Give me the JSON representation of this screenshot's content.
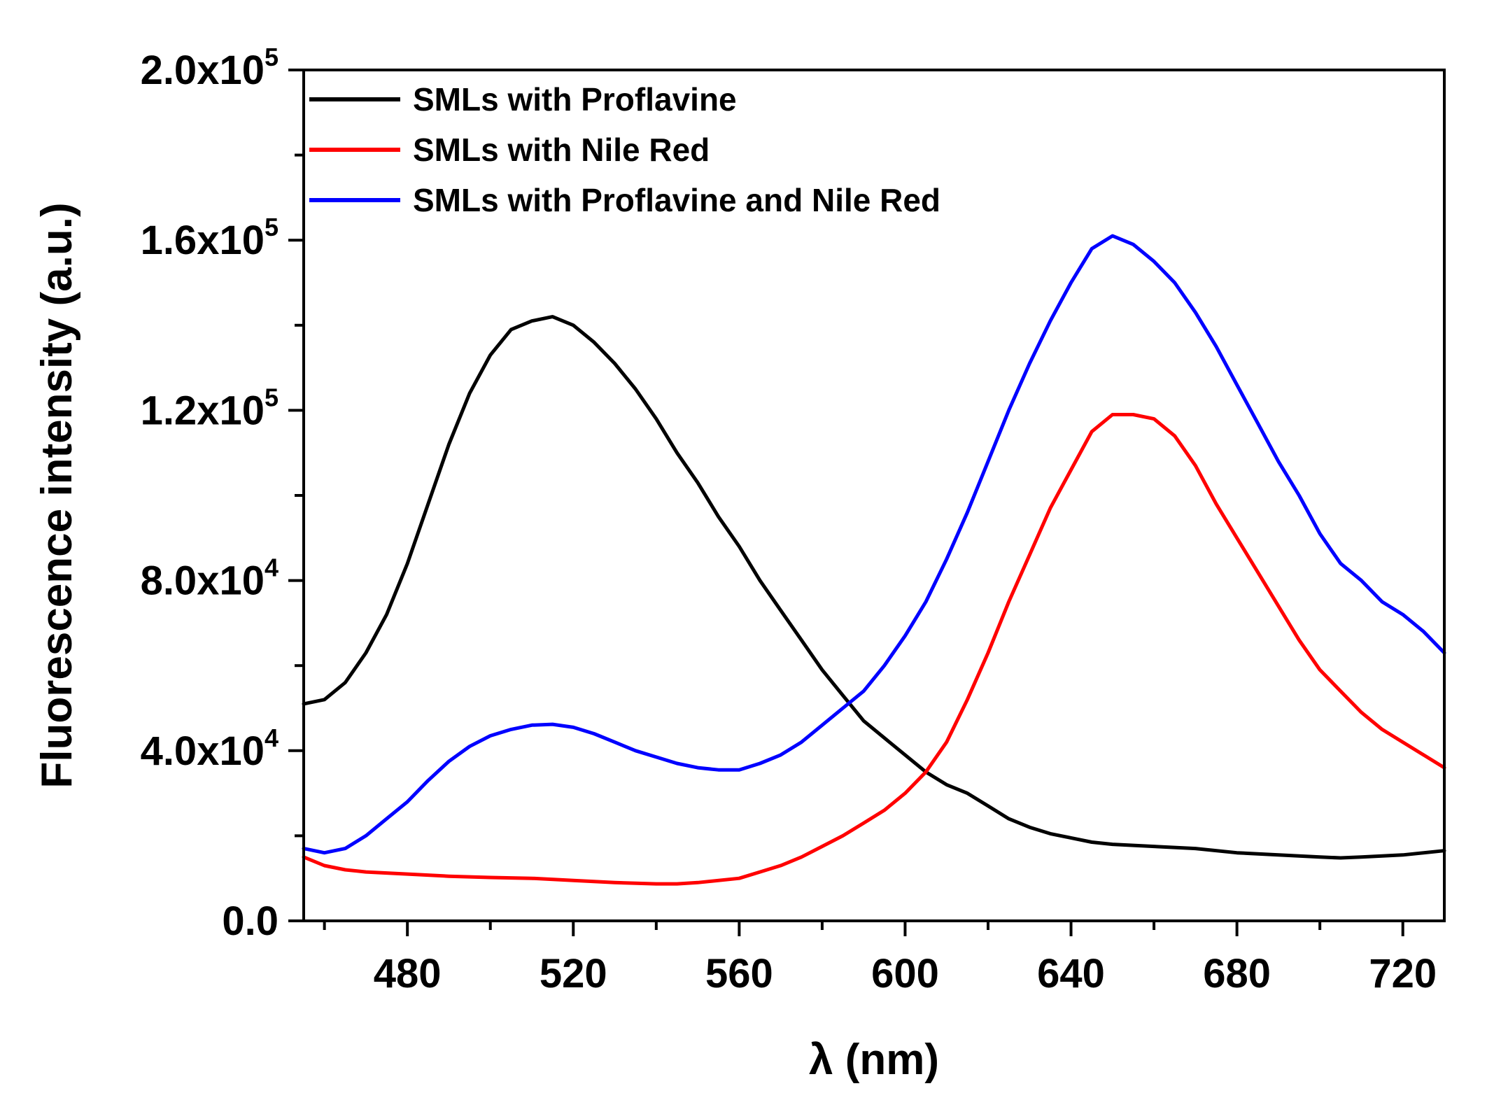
{
  "chart_data": {
    "type": "line",
    "title": "",
    "xlabel": "λ (nm)",
    "ylabel": "Fluorescence intensity (a.u.)",
    "xlim": [
      455,
      730
    ],
    "ylim": [
      0,
      200000
    ],
    "grid": false,
    "legend_position": "top-left",
    "x_ticks": [
      {
        "value": 480,
        "label": "480"
      },
      {
        "value": 520,
        "label": "520"
      },
      {
        "value": 560,
        "label": "560"
      },
      {
        "value": 600,
        "label": "600"
      },
      {
        "value": 640,
        "label": "640"
      },
      {
        "value": 680,
        "label": "680"
      },
      {
        "value": 720,
        "label": "720"
      }
    ],
    "y_ticks": [
      {
        "value": 0,
        "mantissa": "0.0",
        "exponent": ""
      },
      {
        "value": 40000,
        "mantissa": "4.0x10",
        "exponent": "4"
      },
      {
        "value": 80000,
        "mantissa": "8.0x10",
        "exponent": "4"
      },
      {
        "value": 120000,
        "mantissa": "1.2x10",
        "exponent": "5"
      },
      {
        "value": 160000,
        "mantissa": "1.6x10",
        "exponent": "5"
      },
      {
        "value": 200000,
        "mantissa": "2.0x10",
        "exponent": "5"
      }
    ],
    "series": [
      {
        "name": "SMLs with Proflavine",
        "color": "#000000",
        "x": [
          455,
          460,
          465,
          470,
          475,
          480,
          485,
          490,
          495,
          500,
          505,
          510,
          515,
          520,
          525,
          530,
          535,
          540,
          545,
          550,
          555,
          560,
          565,
          570,
          575,
          580,
          585,
          590,
          595,
          600,
          605,
          610,
          615,
          620,
          625,
          630,
          635,
          640,
          645,
          650,
          660,
          670,
          680,
          690,
          700,
          705,
          710,
          720,
          730
        ],
        "values": [
          51000,
          52000,
          56000,
          63000,
          72000,
          84000,
          98000,
          112000,
          124000,
          133000,
          139000,
          141000,
          142000,
          140000,
          136000,
          131000,
          125000,
          118000,
          110000,
          103000,
          95000,
          88000,
          80000,
          73000,
          66000,
          59000,
          53000,
          47000,
          43000,
          39000,
          35000,
          32000,
          30000,
          27000,
          24000,
          22000,
          20500,
          19500,
          18500,
          18000,
          17500,
          17000,
          16000,
          15500,
          15000,
          14800,
          15000,
          15500,
          16500
        ]
      },
      {
        "name": "SMLs with Nile Red",
        "color": "#ff0000",
        "x": [
          455,
          460,
          465,
          470,
          480,
          490,
          500,
          510,
          520,
          530,
          540,
          545,
          550,
          560,
          565,
          570,
          575,
          580,
          585,
          590,
          595,
          600,
          605,
          610,
          615,
          620,
          625,
          630,
          635,
          640,
          645,
          650,
          655,
          660,
          665,
          670,
          675,
          680,
          685,
          690,
          695,
          700,
          705,
          710,
          715,
          720,
          725,
          730
        ],
        "values": [
          15000,
          13000,
          12000,
          11500,
          11000,
          10500,
          10200,
          10000,
          9500,
          9000,
          8700,
          8700,
          9000,
          10000,
          11500,
          13000,
          15000,
          17500,
          20000,
          23000,
          26000,
          30000,
          35000,
          42000,
          52000,
          63000,
          75000,
          86000,
          97000,
          106000,
          115000,
          119000,
          119000,
          118000,
          114000,
          107000,
          98000,
          90000,
          82000,
          74000,
          66000,
          59000,
          54000,
          49000,
          45000,
          42000,
          39000,
          36000
        ]
      },
      {
        "name": "SMLs with Proflavine and Nile Red",
        "color": "#0000ff",
        "x": [
          455,
          460,
          465,
          470,
          475,
          480,
          485,
          490,
          495,
          500,
          505,
          510,
          515,
          520,
          525,
          530,
          535,
          540,
          545,
          550,
          555,
          560,
          565,
          570,
          575,
          580,
          585,
          590,
          595,
          600,
          605,
          610,
          615,
          620,
          625,
          630,
          635,
          640,
          645,
          650,
          655,
          660,
          665,
          670,
          675,
          680,
          685,
          690,
          695,
          700,
          705,
          710,
          715,
          720,
          725,
          730
        ],
        "values": [
          17000,
          16000,
          17000,
          20000,
          24000,
          28000,
          33000,
          37500,
          41000,
          43500,
          45000,
          46000,
          46200,
          45500,
          44000,
          42000,
          40000,
          38500,
          37000,
          36000,
          35500,
          35500,
          37000,
          39000,
          42000,
          46000,
          50000,
          54000,
          60000,
          67000,
          75000,
          85000,
          96000,
          108000,
          120000,
          131000,
          141000,
          150000,
          158000,
          161000,
          159000,
          155000,
          150000,
          143000,
          135000,
          126000,
          117000,
          108000,
          100000,
          91000,
          84000,
          80000,
          75000,
          72000,
          68000,
          63000
        ]
      }
    ]
  }
}
